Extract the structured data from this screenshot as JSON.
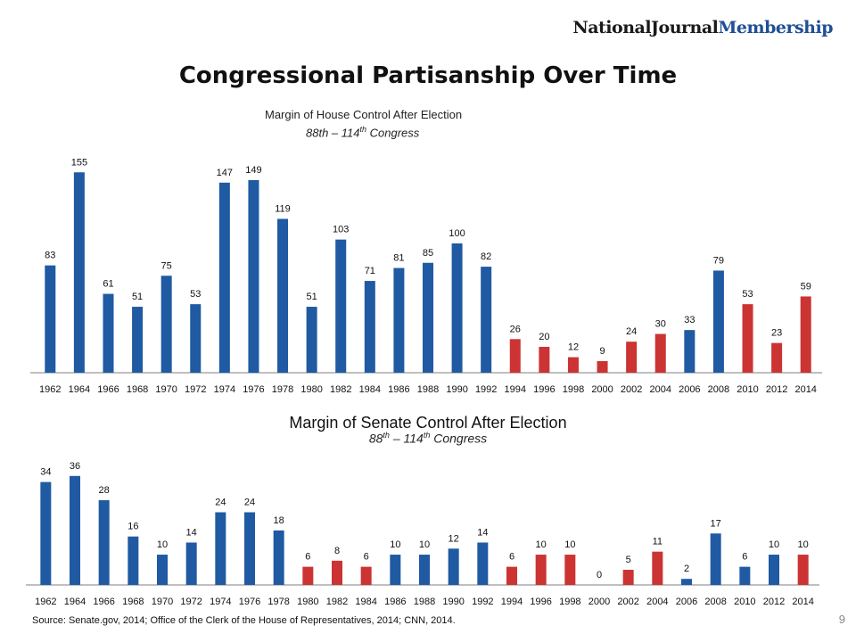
{
  "brand": {
    "part1": "NationalJournal",
    "part2": "Membership"
  },
  "title": "Congressional Partisanship Over Time",
  "house_subtitle": {
    "line1": "Margin of House Control After Election",
    "line2a": "88th – 114",
    "sup": "th",
    "line2b": " Congress"
  },
  "senate_subtitle": {
    "line1": "Margin of Senate Control After Election",
    "line2a": "88",
    "sup1": "th",
    "line2b": " – 114",
    "sup2": "th",
    "line2c": " Congress"
  },
  "source": "Source: Senate.gov, 2014; Office of the Clerk of the House of Representatives, 2014; CNN, 2014.",
  "page_number": "9",
  "colors": {
    "democrat": "#1f5aa3",
    "republican": "#cc3333",
    "axis": "#aaaaaa",
    "text": "#111111"
  },
  "chart_data": [
    {
      "type": "bar",
      "title": "Margin of House Control After Election",
      "subtitle": "88th – 114th Congress",
      "categories": [
        "1962",
        "1964",
        "1966",
        "1968",
        "1970",
        "1972",
        "1974",
        "1976",
        "1978",
        "1980",
        "1982",
        "1984",
        "1986",
        "1988",
        "1990",
        "1992",
        "1994",
        "1996",
        "1998",
        "2000",
        "2002",
        "2004",
        "2006",
        "2008",
        "2010",
        "2012",
        "2014"
      ],
      "values": [
        83,
        155,
        61,
        51,
        75,
        53,
        147,
        149,
        119,
        51,
        103,
        71,
        81,
        85,
        100,
        82,
        26,
        20,
        12,
        9,
        24,
        30,
        33,
        79,
        53,
        23,
        59
      ],
      "party": [
        "D",
        "D",
        "D",
        "D",
        "D",
        "D",
        "D",
        "D",
        "D",
        "D",
        "D",
        "D",
        "D",
        "D",
        "D",
        "D",
        "R",
        "R",
        "R",
        "R",
        "R",
        "R",
        "D",
        "D",
        "R",
        "R",
        "R"
      ],
      "ylim": [
        0,
        160
      ],
      "grid": false,
      "legend": "none"
    },
    {
      "type": "bar",
      "title": "Margin of Senate Control After Election",
      "subtitle": "88th – 114th Congress",
      "categories": [
        "1962",
        "1964",
        "1966",
        "1968",
        "1970",
        "1972",
        "1974",
        "1976",
        "1978",
        "1980",
        "1982",
        "1984",
        "1986",
        "1988",
        "1990",
        "1992",
        "1994",
        "1996",
        "1998",
        "2000",
        "2002",
        "2004",
        "2006",
        "2008",
        "2010",
        "2012",
        "2014"
      ],
      "values": [
        34,
        36,
        28,
        16,
        10,
        14,
        24,
        24,
        18,
        6,
        8,
        6,
        10,
        10,
        12,
        14,
        6,
        10,
        10,
        0,
        5,
        11,
        2,
        17,
        6,
        10,
        10
      ],
      "party": [
        "D",
        "D",
        "D",
        "D",
        "D",
        "D",
        "D",
        "D",
        "D",
        "R",
        "R",
        "R",
        "D",
        "D",
        "D",
        "D",
        "R",
        "R",
        "R",
        "N",
        "R",
        "R",
        "D",
        "D",
        "D",
        "D",
        "R"
      ],
      "ylim": [
        0,
        38
      ],
      "grid": false,
      "legend": "none"
    }
  ]
}
